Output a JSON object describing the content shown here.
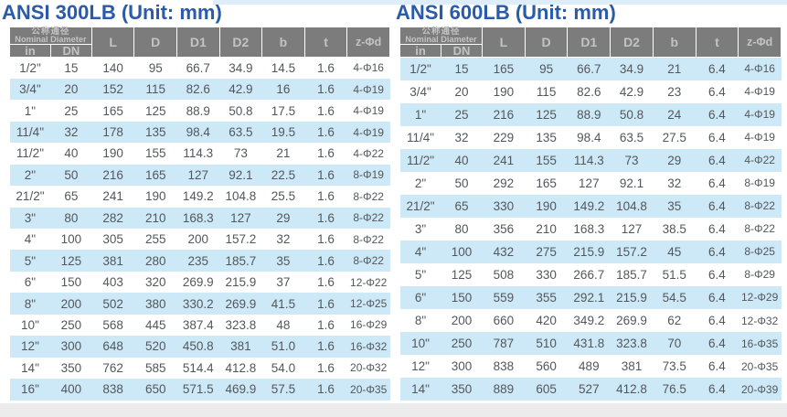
{
  "tables": [
    {
      "title": "ANSI 300LB (Unit: mm)",
      "header": {
        "group_cn": "公称通径",
        "group_en": "Nominal Diameter",
        "sub_columns": [
          "in",
          "DN"
        ],
        "columns": [
          "L",
          "D",
          "D1",
          "D2",
          "b",
          "t",
          "z-Φd"
        ]
      },
      "rows": [
        [
          "1/2\"",
          "15",
          "140",
          "95",
          "66.7",
          "34.9",
          "14.5",
          "1.6",
          "4-Φ16"
        ],
        [
          "3/4\"",
          "20",
          "152",
          "115",
          "82.6",
          "42.9",
          "16",
          "1.6",
          "4-Φ19"
        ],
        [
          "1\"",
          "25",
          "165",
          "125",
          "88.9",
          "50.8",
          "17.5",
          "1.6",
          "4-Φ19"
        ],
        [
          "11/4\"",
          "32",
          "178",
          "135",
          "98.4",
          "63.5",
          "19.5",
          "1.6",
          "4-Φ19"
        ],
        [
          "11/2\"",
          "40",
          "190",
          "155",
          "114.3",
          "73",
          "21",
          "1.6",
          "4-Φ22"
        ],
        [
          "2\"",
          "50",
          "216",
          "165",
          "127",
          "92.1",
          "22.5",
          "1.6",
          "8-Φ19"
        ],
        [
          "21/2\"",
          "65",
          "241",
          "190",
          "149.2",
          "104.8",
          "25.5",
          "1.6",
          "8-Φ22"
        ],
        [
          "3\"",
          "80",
          "282",
          "210",
          "168.3",
          "127",
          "29",
          "1.6",
          "8-Φ22"
        ],
        [
          "4\"",
          "100",
          "305",
          "255",
          "200",
          "157.2",
          "32",
          "1.6",
          "8-Φ22"
        ],
        [
          "5\"",
          "125",
          "381",
          "280",
          "235",
          "185.7",
          "35",
          "1.6",
          "8-Φ22"
        ],
        [
          "6\"",
          "150",
          "403",
          "320",
          "269.9",
          "215.9",
          "37",
          "1.6",
          "12-Φ22"
        ],
        [
          "8\"",
          "200",
          "502",
          "380",
          "330.2",
          "269.9",
          "41.5",
          "1.6",
          "12-Φ25"
        ],
        [
          "10\"",
          "250",
          "568",
          "445",
          "387.4",
          "323.8",
          "48",
          "1.6",
          "16-Φ29"
        ],
        [
          "12\"",
          "300",
          "648",
          "520",
          "450.8",
          "381",
          "51.0",
          "1.6",
          "16-Φ32"
        ],
        [
          "14\"",
          "350",
          "762",
          "585",
          "514.4",
          "412.8",
          "54.0",
          "1.6",
          "20-Φ32"
        ],
        [
          "16\"",
          "400",
          "838",
          "650",
          "571.5",
          "469.9",
          "57.5",
          "1.6",
          "20-Φ35"
        ]
      ]
    },
    {
      "title": "ANSI 600LB (Unit: mm)",
      "header": {
        "group_cn": "公称通径",
        "group_en": "Nominal Diameter",
        "sub_columns": [
          "in",
          "DN"
        ],
        "columns": [
          "L",
          "D",
          "D1",
          "D2",
          "b",
          "t",
          "z-Φd"
        ]
      },
      "rows": [
        [
          "1/2\"",
          "15",
          "165",
          "95",
          "66.7",
          "34.9",
          "21",
          "6.4",
          "4-Φ16"
        ],
        [
          "3/4\"",
          "20",
          "190",
          "115",
          "82.6",
          "42.9",
          "23",
          "6.4",
          "4-Φ19"
        ],
        [
          "1\"",
          "25",
          "216",
          "125",
          "88.9",
          "50.8",
          "24",
          "6.4",
          "4-Φ19"
        ],
        [
          "11/4\"",
          "32",
          "229",
          "135",
          "98.4",
          "63.5",
          "27.5",
          "6.4",
          "4-Φ19"
        ],
        [
          "11/2\"",
          "40",
          "241",
          "155",
          "114.3",
          "73",
          "29",
          "6.4",
          "4-Φ22"
        ],
        [
          "2\"",
          "50",
          "292",
          "165",
          "127",
          "92.1",
          "32",
          "6.4",
          "8-Φ19"
        ],
        [
          "21/2\"",
          "65",
          "330",
          "190",
          "149.2",
          "104.8",
          "35",
          "6.4",
          "8-Φ22"
        ],
        [
          "3\"",
          "80",
          "356",
          "210",
          "168.3",
          "127",
          "38.5",
          "6.4",
          "8-Φ22"
        ],
        [
          "4\"",
          "100",
          "432",
          "275",
          "215.9",
          "157.2",
          "45",
          "6.4",
          "8-Φ25"
        ],
        [
          "5\"",
          "125",
          "508",
          "330",
          "266.7",
          "185.7",
          "51.5",
          "6.4",
          "8-Φ29"
        ],
        [
          "6\"",
          "150",
          "559",
          "355",
          "292.1",
          "215.9",
          "54.5",
          "6.4",
          "12-Φ29"
        ],
        [
          "8\"",
          "200",
          "660",
          "420",
          "349.2",
          "269.9",
          "62",
          "6.4",
          "12-Φ32"
        ],
        [
          "10\"",
          "250",
          "787",
          "510",
          "431.8",
          "323.8",
          "70",
          "6.4",
          "16-Φ35"
        ],
        [
          "12\"",
          "300",
          "838",
          "560",
          "489",
          "381",
          "73.5",
          "6.4",
          "20-Φ35"
        ],
        [
          "14\"",
          "350",
          "889",
          "605",
          "527",
          "412.8",
          "76.5",
          "6.4",
          "20-Φ39"
        ]
      ]
    }
  ],
  "colors": {
    "title_blue": "#2a5ba8",
    "header_gray": "#7c7c7c",
    "header_text": "#c3c3c3",
    "stripe_blue": "#cde9f7",
    "data_text": "#53575b",
    "bottom_strip": "#ececec",
    "top_strip": "#ddeefa"
  }
}
